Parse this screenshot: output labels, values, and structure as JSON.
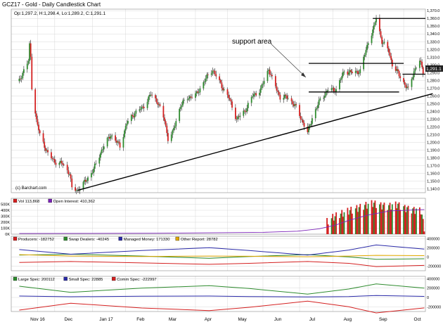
{
  "header": {
    "title": "GCZ17 - Gold - Daily Candlestick Chart",
    "ohlc": "Op:1,297.2, H:1,298.4, Lo:1,289.2, C:1,291.1"
  },
  "source_label": "(c) Barchart.com",
  "annotation": "support area",
  "last_price_badge": "1,291.1",
  "colors": {
    "up": "#2e8b2e",
    "down": "#d42020",
    "volume": "#d42020",
    "open_interest": "#7b22b8",
    "producers": "#d42020",
    "swap_dealers": "#2e8b2e",
    "managed_money": "#2a2aa8",
    "other_report": "#e0a800",
    "large_spec": "#2e8b2e",
    "small_spec": "#2a2aa8",
    "comm_spec": "#d42020",
    "grid": "#d8d8d8",
    "panel_bg": "#ffffff"
  },
  "x_axis_labels": [
    "Nov 16",
    "Dec",
    "Jan 17",
    "Feb",
    "Mar",
    "Apr",
    "May",
    "Jun",
    "Jul",
    "Aug",
    "Sep",
    "Oct"
  ],
  "chart_data": [
    {
      "type": "candlestick",
      "title": "GCZ17 - Gold - Daily Candlestick Chart",
      "ylim": [
        1135,
        1372
      ],
      "y_ticks": [
        "1,370.0",
        "1,360.0",
        "1,350.0",
        "1,340.0",
        "1,330.0",
        "1,320.0",
        "1,310.0",
        "1,300.0",
        "1,290.0",
        "1,280.0",
        "1,270.0",
        "1,260.0",
        "1,250.0",
        "1,240.0",
        "1,230.0",
        "1,220.0",
        "1,210.0",
        "1,200.0",
        "1,190.0",
        "1,180.0",
        "1,170.0",
        "1,160.0",
        "1,150.0",
        "1,140.0"
      ],
      "close_series": [
        [
          "2016-10-31",
          1279
        ],
        [
          "2016-11-03",
          1290
        ],
        [
          "2016-11-08",
          1305
        ],
        [
          "2016-11-09",
          1325
        ],
        [
          "2016-11-10",
          1310
        ],
        [
          "2016-11-11",
          1272
        ],
        [
          "2016-11-15",
          1228
        ],
        [
          "2016-11-18",
          1210
        ],
        [
          "2016-11-25",
          1185
        ],
        [
          "2016-12-01",
          1175
        ],
        [
          "2016-12-08",
          1172
        ],
        [
          "2016-12-14",
          1160
        ],
        [
          "2016-12-16",
          1140
        ],
        [
          "2016-12-21",
          1138
        ],
        [
          "2016-12-28",
          1150
        ],
        [
          "2017-01-04",
          1165
        ],
        [
          "2017-01-11",
          1190
        ],
        [
          "2017-01-19",
          1210
        ],
        [
          "2017-01-27",
          1195
        ],
        [
          "2017-02-02",
          1225
        ],
        [
          "2017-02-09",
          1238
        ],
        [
          "2017-02-16",
          1245
        ],
        [
          "2017-02-23",
          1262
        ],
        [
          "2017-03-01",
          1252
        ],
        [
          "2017-03-07",
          1228
        ],
        [
          "2017-03-10",
          1205
        ],
        [
          "2017-03-14",
          1212
        ],
        [
          "2017-03-21",
          1248
        ],
        [
          "2017-03-28",
          1258
        ],
        [
          "2017-04-04",
          1262
        ],
        [
          "2017-04-11",
          1280
        ],
        [
          "2017-04-18",
          1294
        ],
        [
          "2017-04-25",
          1275
        ],
        [
          "2017-05-02",
          1258
        ],
        [
          "2017-05-09",
          1230
        ],
        [
          "2017-05-16",
          1240
        ],
        [
          "2017-05-23",
          1260
        ],
        [
          "2017-05-30",
          1268
        ],
        [
          "2017-06-06",
          1295
        ],
        [
          "2017-06-09",
          1282
        ],
        [
          "2017-06-16",
          1258
        ],
        [
          "2017-06-23",
          1258
        ],
        [
          "2017-06-30",
          1245
        ],
        [
          "2017-07-07",
          1222
        ],
        [
          "2017-07-10",
          1212
        ],
        [
          "2017-07-14",
          1232
        ],
        [
          "2017-07-21",
          1255
        ],
        [
          "2017-07-28",
          1268
        ],
        [
          "2017-08-04",
          1268
        ],
        [
          "2017-08-11",
          1292
        ],
        [
          "2017-08-18",
          1290
        ],
        [
          "2017-08-25",
          1292
        ],
        [
          "2017-09-01",
          1330
        ],
        [
          "2017-09-06",
          1348
        ],
        [
          "2017-09-08",
          1362
        ],
        [
          "2017-09-13",
          1330
        ],
        [
          "2017-09-19",
          1318
        ],
        [
          "2017-09-22",
          1300
        ],
        [
          "2017-09-29",
          1285
        ],
        [
          "2017-10-04",
          1272
        ],
        [
          "2017-10-06",
          1268
        ],
        [
          "2017-10-11",
          1292
        ],
        [
          "2017-10-16",
          1305
        ],
        [
          "2017-10-19",
          1292
        ]
      ],
      "trendline": {
        "from": [
          "2016-12-21",
          1138
        ],
        "to": [
          "2017-10-20",
          1262
        ]
      },
      "horizontal_levels": [
        1360,
        1302,
        1288,
        1265
      ]
    },
    {
      "type": "bar",
      "title": "Vol 113,868",
      "secondary_series": "Open Interest: 410,362",
      "ylim": [
        0,
        600
      ],
      "y_ticks": [
        "500K",
        "400K",
        "300K",
        "200K",
        "100K",
        "0K"
      ],
      "volume_series": [
        [
          "2017-07-27",
          210
        ],
        [
          "2017-08-01",
          280
        ],
        [
          "2017-08-08",
          340
        ],
        [
          "2017-08-15",
          390
        ],
        [
          "2017-08-22",
          430
        ],
        [
          "2017-08-29",
          480
        ],
        [
          "2017-09-05",
          520
        ],
        [
          "2017-09-12",
          480
        ],
        [
          "2017-09-19",
          470
        ],
        [
          "2017-09-26",
          500
        ],
        [
          "2017-10-03",
          440
        ],
        [
          "2017-10-10",
          410
        ],
        [
          "2017-10-17",
          400
        ],
        [
          "2017-10-20",
          114
        ]
      ],
      "open_interest_series": [
        [
          "2016-10-31",
          10
        ],
        [
          "2017-03-01",
          15
        ],
        [
          "2017-06-01",
          30
        ],
        [
          "2017-07-01",
          50
        ],
        [
          "2017-07-20",
          90
        ],
        [
          "2017-08-03",
          150
        ],
        [
          "2017-08-15",
          230
        ],
        [
          "2017-09-01",
          320
        ],
        [
          "2017-09-20",
          390
        ],
        [
          "2017-10-20",
          410
        ]
      ]
    },
    {
      "type": "line",
      "ylim": [
        -300000,
        450000
      ],
      "y_ticks": [
        "400000",
        "200000",
        "0",
        "-200000"
      ],
      "series": [
        {
          "name": "Producers: -182752",
          "key": "producers",
          "points": [
            [
              "2016-10-31",
              -120000
            ],
            [
              "2016-12-15",
              -100000
            ],
            [
              "2017-02-15",
              -130000
            ],
            [
              "2017-04-15",
              -160000
            ],
            [
              "2017-05-20",
              -140000
            ],
            [
              "2017-07-10",
              -100000
            ],
            [
              "2017-08-15",
              -140000
            ],
            [
              "2017-09-08",
              -210000
            ],
            [
              "2017-10-20",
              -183000
            ]
          ]
        },
        {
          "name": "Swap Dealers: -40245",
          "key": "swap_dealers",
          "points": [
            [
              "2016-10-31",
              40000
            ],
            [
              "2016-12-15",
              60000
            ],
            [
              "2017-02-15",
              20000
            ],
            [
              "2017-04-15",
              -30000
            ],
            [
              "2017-05-20",
              10000
            ],
            [
              "2017-07-10",
              50000
            ],
            [
              "2017-08-15",
              0
            ],
            [
              "2017-09-08",
              -50000
            ],
            [
              "2017-10-20",
              -40000
            ]
          ]
        },
        {
          "name": "Managed Money: 171330",
          "key": "managed_money",
          "points": [
            [
              "2016-10-31",
              160000
            ],
            [
              "2016-12-15",
              60000
            ],
            [
              "2017-02-15",
              140000
            ],
            [
              "2017-04-15",
              200000
            ],
            [
              "2017-05-20",
              140000
            ],
            [
              "2017-07-10",
              40000
            ],
            [
              "2017-08-15",
              150000
            ],
            [
              "2017-09-08",
              260000
            ],
            [
              "2017-10-20",
              171000
            ]
          ]
        },
        {
          "name": "Other Report: 28782",
          "key": "other_report",
          "points": [
            [
              "2016-10-31",
              50000
            ],
            [
              "2016-12-15",
              20000
            ],
            [
              "2017-02-15",
              10000
            ],
            [
              "2017-04-15",
              20000
            ],
            [
              "2017-05-20",
              15000
            ],
            [
              "2017-07-10",
              5000
            ],
            [
              "2017-08-15",
              20000
            ],
            [
              "2017-09-08",
              35000
            ],
            [
              "2017-10-20",
              29000
            ]
          ]
        }
      ]
    },
    {
      "type": "line",
      "ylim": [
        -300000,
        450000
      ],
      "y_ticks": [
        "400000",
        "200000",
        "0",
        "-200000"
      ],
      "series": [
        {
          "name": "Large Spec: 200112",
          "key": "large_spec",
          "points": [
            [
              "2016-10-31",
              240000
            ],
            [
              "2016-12-15",
              110000
            ],
            [
              "2017-02-15",
              200000
            ],
            [
              "2017-04-15",
              250000
            ],
            [
              "2017-05-20",
              190000
            ],
            [
              "2017-07-10",
              70000
            ],
            [
              "2017-08-15",
              180000
            ],
            [
              "2017-09-08",
              290000
            ],
            [
              "2017-10-20",
              200000
            ]
          ]
        },
        {
          "name": "Small Spec: 22885",
          "key": "small_spec",
          "points": [
            [
              "2016-10-31",
              30000
            ],
            [
              "2016-12-15",
              15000
            ],
            [
              "2017-02-15",
              25000
            ],
            [
              "2017-04-15",
              30000
            ],
            [
              "2017-05-20",
              20000
            ],
            [
              "2017-07-10",
              10000
            ],
            [
              "2017-08-15",
              20000
            ],
            [
              "2017-09-08",
              40000
            ],
            [
              "2017-10-20",
              23000
            ]
          ]
        },
        {
          "name": "Comm Spec: -222997",
          "key": "comm_spec",
          "points": [
            [
              "2016-10-31",
              -270000
            ],
            [
              "2016-12-15",
              -125000
            ],
            [
              "2017-02-15",
              -225000
            ],
            [
              "2017-04-15",
              -280000
            ],
            [
              "2017-05-20",
              -210000
            ],
            [
              "2017-07-10",
              -80000
            ],
            [
              "2017-08-15",
              -200000
            ],
            [
              "2017-09-08",
              -330000
            ],
            [
              "2017-10-20",
              -223000
            ]
          ]
        }
      ]
    }
  ]
}
